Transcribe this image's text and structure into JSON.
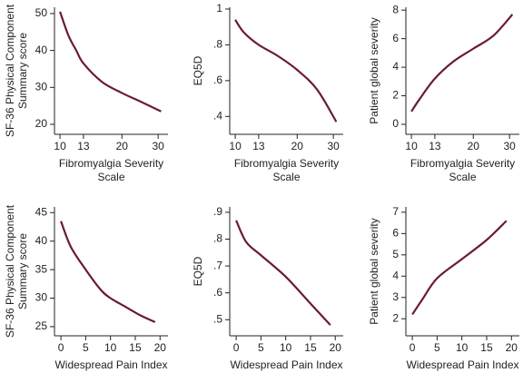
{
  "chart_data": [
    {
      "type": "line",
      "xscale": "log",
      "xlabel": [
        "Fibromyalgia Severity",
        "Scale"
      ],
      "ylabel": [
        "SF-36 Physical Component",
        "Summary score"
      ],
      "x": [
        10,
        11,
        12,
        13,
        16,
        20,
        25,
        31
      ],
      "values": [
        50.5,
        44,
        40,
        36.5,
        31.5,
        28.5,
        26,
        23.5
      ],
      "color": "#6b1a3a",
      "xlim": [
        9.4,
        33.5
      ],
      "ylim": [
        17.3,
        51.7
      ],
      "xticks": [
        10,
        13,
        20,
        30
      ],
      "yticks": [
        20,
        30,
        40,
        50
      ]
    },
    {
      "type": "line",
      "xscale": "log",
      "xlabel": [
        "Fibromyalgia Severity",
        "Scale"
      ],
      "ylabel": [
        "EQ5D"
      ],
      "x": [
        10,
        11,
        13,
        16,
        20,
        25,
        31
      ],
      "values": [
        0.94,
        0.87,
        0.8,
        0.74,
        0.66,
        0.55,
        0.37
      ],
      "color": "#6b1a3a",
      "xlim": [
        9.4,
        33.5
      ],
      "ylim": [
        0.3,
        1.01
      ],
      "xticks": [
        10,
        13,
        20,
        30
      ],
      "yticks": [
        {
          "value": 0.4,
          "label": ".4"
        },
        {
          "value": 0.6,
          "label": ".6"
        },
        {
          "value": 0.8,
          "label": ".8"
        },
        1
      ]
    },
    {
      "type": "line",
      "xscale": "log",
      "xlabel": [
        "Fibromyalgia Severity",
        "Scale"
      ],
      "ylabel": [
        "Patient global severity"
      ],
      "x": [
        10,
        11,
        13,
        16,
        20,
        25,
        31
      ],
      "values": [
        0.9,
        1.8,
        3.2,
        4.4,
        5.3,
        6.2,
        7.7
      ],
      "color": "#6b1a3a",
      "xlim": [
        9.4,
        33.5
      ],
      "ylim": [
        -0.7,
        8.2
      ],
      "xticks": [
        10,
        13,
        20,
        30
      ],
      "yticks": [
        0,
        2,
        4,
        6,
        8
      ]
    },
    {
      "type": "line",
      "xlabel": [
        "Widespread Pain Index"
      ],
      "ylabel": [
        "SF-36 Physical Component",
        "Summary score"
      ],
      "x": [
        0,
        2,
        5,
        8,
        10,
        13,
        16,
        19
      ],
      "values": [
        43.5,
        39,
        35,
        31.5,
        30,
        28.5,
        27,
        25.8
      ],
      "color": "#6b1a3a",
      "xlim": [
        -1.3,
        21.6
      ],
      "ylim": [
        23.4,
        46
      ],
      "xticks": [
        0,
        5,
        10,
        15,
        20
      ],
      "yticks": [
        25,
        30,
        35,
        40,
        45
      ]
    },
    {
      "type": "line",
      "xlabel": [
        "Widespread Pain Index"
      ],
      "ylabel": [
        "EQ5D"
      ],
      "x": [
        0,
        2,
        5,
        10,
        15,
        19
      ],
      "values": [
        0.87,
        0.79,
        0.74,
        0.66,
        0.56,
        0.48
      ],
      "color": "#6b1a3a",
      "xlim": [
        -1.3,
        21.6
      ],
      "ylim": [
        0.44,
        0.92
      ],
      "xticks": [
        0,
        5,
        10,
        15,
        20
      ],
      "yticks": [
        {
          "value": 0.5,
          "label": ".5"
        },
        {
          "value": 0.6,
          "label": ".6"
        },
        {
          "value": 0.7,
          "label": ".7"
        },
        {
          "value": 0.8,
          "label": ".8"
        },
        {
          "value": 0.9,
          "label": ".9"
        }
      ]
    },
    {
      "type": "line",
      "xlabel": [
        "Widespread Pain Index"
      ],
      "ylabel": [
        "Patient global severity"
      ],
      "x": [
        0,
        2,
        5,
        10,
        15,
        19
      ],
      "values": [
        2.2,
        2.9,
        3.9,
        4.8,
        5.7,
        6.6
      ],
      "color": "#6b1a3a",
      "xlim": [
        -1.3,
        21.6
      ],
      "ylim": [
        1.2,
        7.25
      ],
      "xticks": [
        0,
        5,
        10,
        15,
        20
      ],
      "yticks": [
        2,
        3,
        4,
        5,
        6,
        7
      ]
    }
  ]
}
